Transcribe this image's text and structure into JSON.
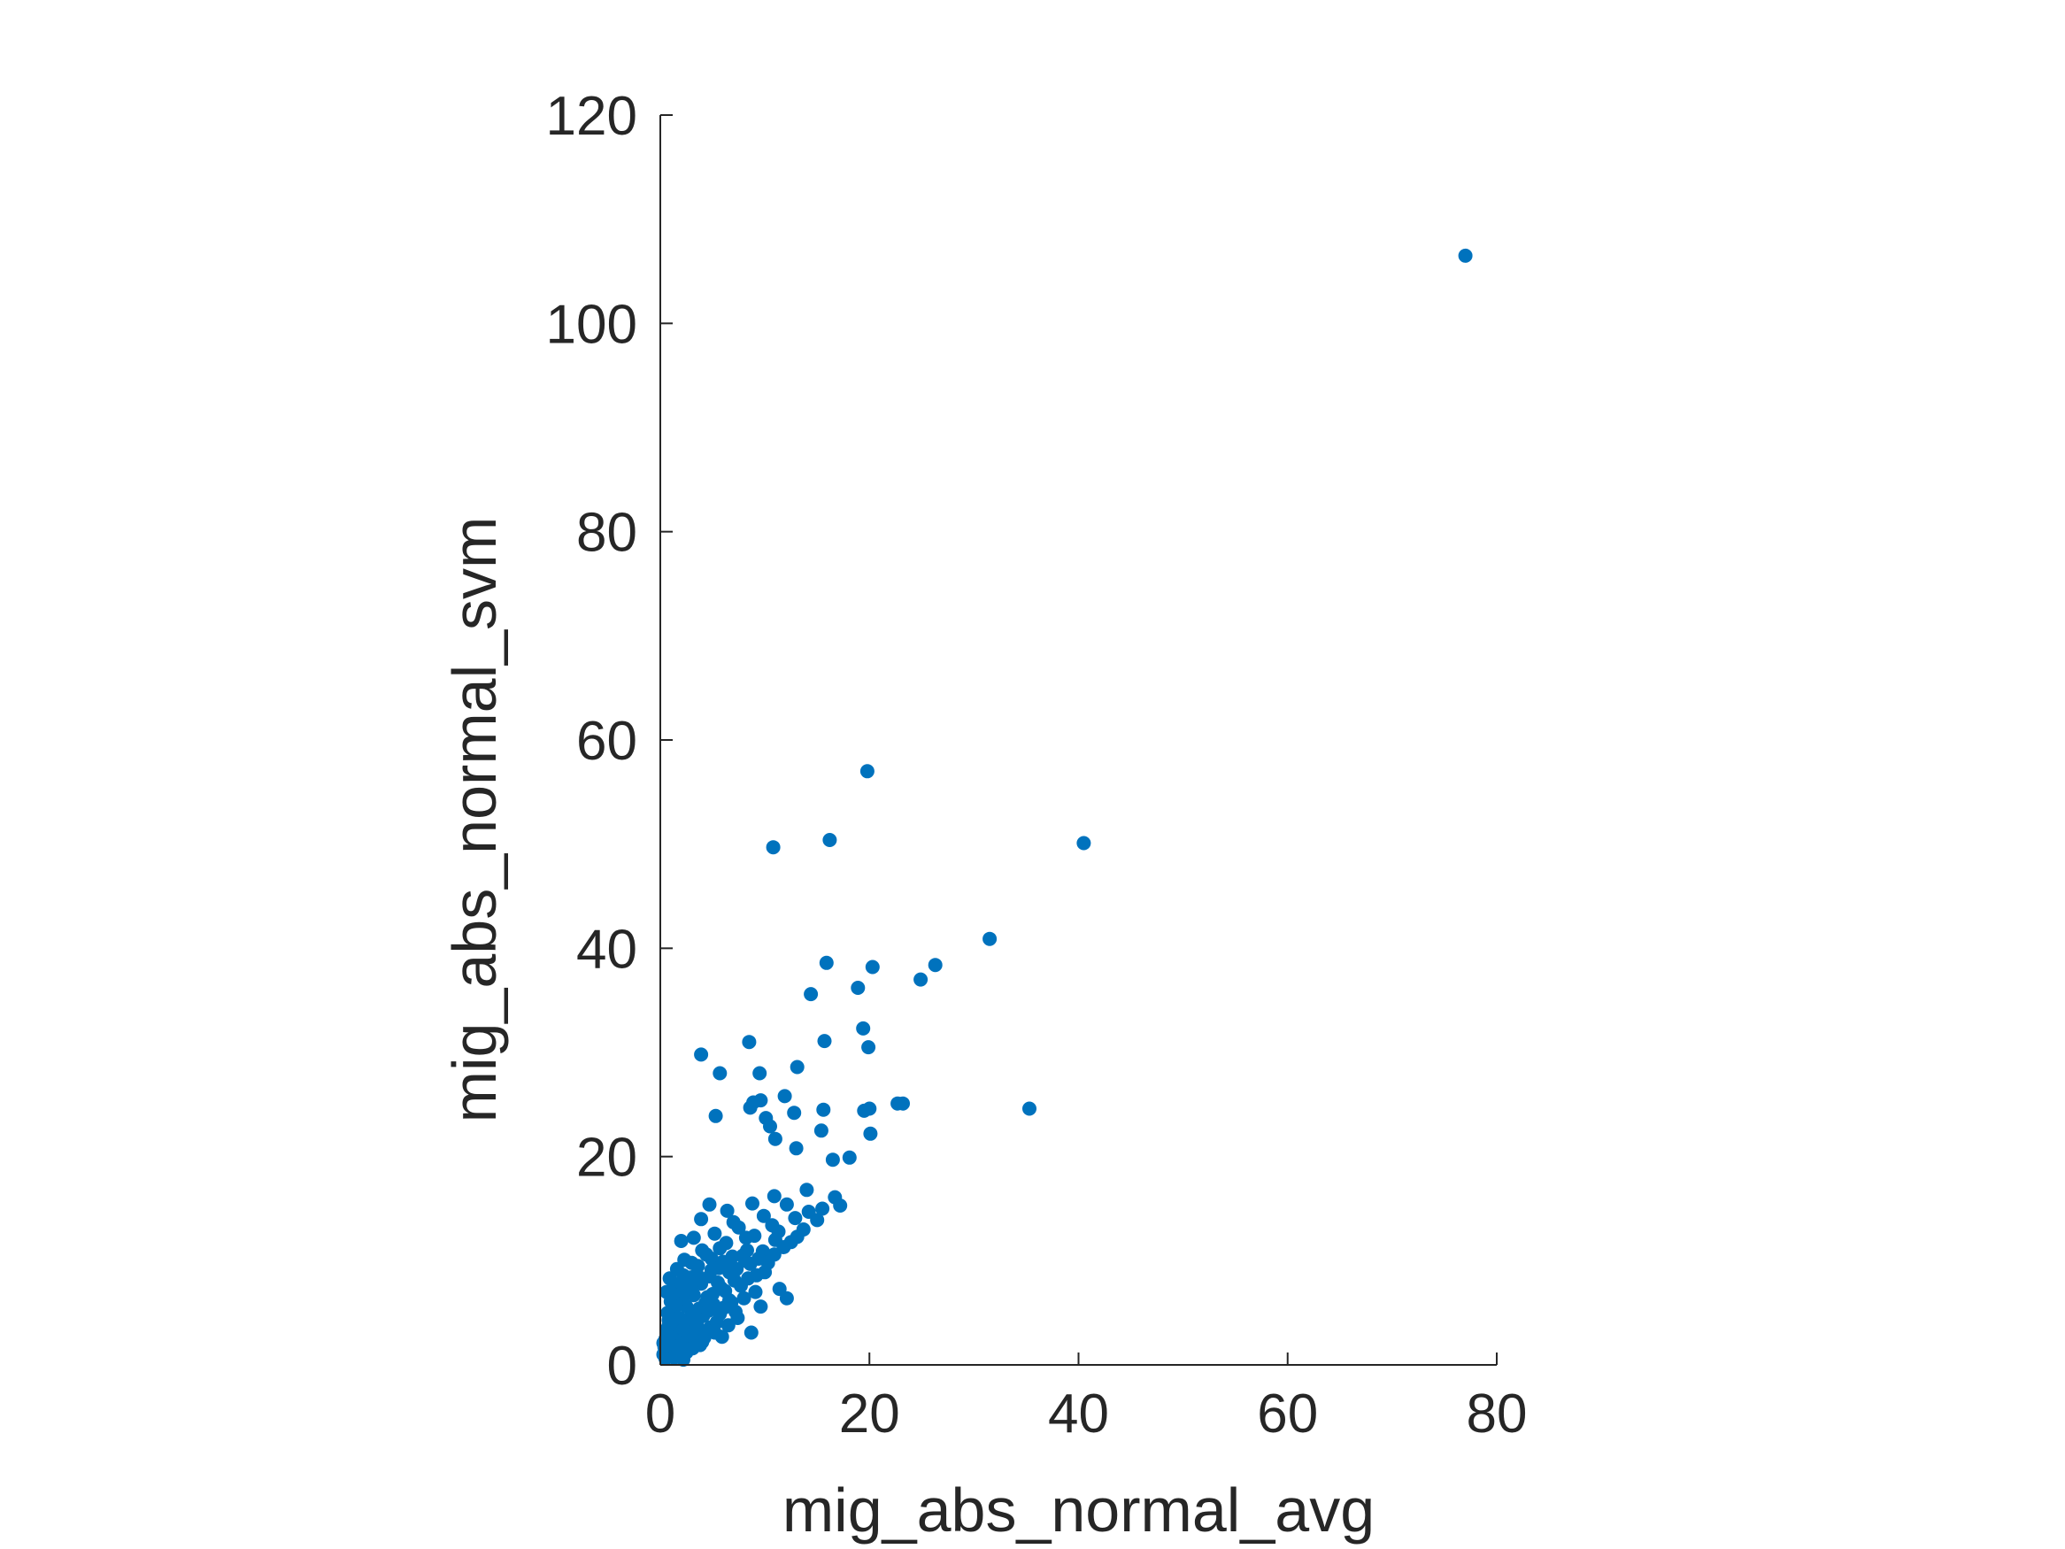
{
  "chart_data": {
    "type": "scatter",
    "title": "",
    "xlabel": "mig_abs_normal_avg",
    "ylabel": "mig_abs_normal_svm",
    "xlim": [
      0,
      80
    ],
    "ylim": [
      0,
      120
    ],
    "xticks": [
      "0",
      "20",
      "40",
      "60",
      "80"
    ],
    "yticks": [
      "0",
      "20",
      "40",
      "60",
      "80",
      "100",
      "120"
    ],
    "grid": false,
    "legend": "none",
    "marker_color": "#0072BD",
    "series": [
      {
        "points": [
          [
            77.0,
            106.5
          ],
          [
            40.5,
            50.1
          ],
          [
            31.5,
            40.9
          ],
          [
            35.3,
            24.6
          ],
          [
            26.3,
            38.4
          ],
          [
            24.9,
            37.0
          ],
          [
            23.2,
            25.1
          ],
          [
            22.7,
            25.1
          ],
          [
            19.8,
            57.0
          ],
          [
            16.2,
            50.4
          ],
          [
            10.8,
            49.7
          ],
          [
            15.9,
            38.6
          ],
          [
            20.3,
            38.2
          ],
          [
            14.4,
            35.6
          ],
          [
            18.9,
            36.2
          ],
          [
            19.4,
            32.3
          ],
          [
            19.9,
            30.5
          ],
          [
            15.7,
            31.1
          ],
          [
            8.5,
            31.0
          ],
          [
            3.9,
            29.8
          ],
          [
            5.7,
            28.0
          ],
          [
            13.1,
            28.6
          ],
          [
            9.5,
            28.0
          ],
          [
            11.9,
            25.8
          ],
          [
            8.9,
            25.2
          ],
          [
            9.6,
            25.4
          ],
          [
            15.6,
            24.5
          ],
          [
            19.5,
            24.4
          ],
          [
            20.0,
            24.6
          ],
          [
            12.8,
            24.2
          ],
          [
            5.3,
            23.9
          ],
          [
            10.1,
            23.7
          ],
          [
            8.6,
            24.7
          ],
          [
            10.5,
            22.9
          ],
          [
            15.4,
            22.5
          ],
          [
            20.1,
            22.2
          ],
          [
            11.0,
            21.7
          ],
          [
            13.0,
            20.8
          ],
          [
            16.5,
            19.7
          ],
          [
            18.1,
            19.9
          ],
          [
            10.9,
            16.2
          ],
          [
            14.0,
            16.8
          ],
          [
            16.7,
            16.1
          ],
          [
            4.7,
            15.4
          ],
          [
            6.4,
            14.8
          ],
          [
            8.8,
            15.5
          ],
          [
            3.9,
            14.0
          ],
          [
            7.0,
            13.7
          ],
          [
            9.9,
            14.3
          ],
          [
            12.1,
            15.4
          ],
          [
            15.5,
            15.0
          ],
          [
            2.0,
            11.9
          ],
          [
            3.2,
            12.2
          ],
          [
            5.7,
            11.2
          ],
          [
            8.2,
            12.2
          ],
          [
            11.3,
            12.8
          ],
          [
            13.1,
            12.3
          ],
          [
            3.0,
            9.8
          ],
          [
            4.4,
            10.6
          ],
          [
            6.0,
            9.9
          ],
          [
            7.9,
            10.5
          ],
          [
            9.8,
            10.9
          ],
          [
            11.8,
            11.3
          ],
          [
            2.2,
            8.6
          ],
          [
            3.5,
            8.7
          ],
          [
            4.9,
            9.1
          ],
          [
            6.6,
            8.9
          ],
          [
            8.6,
            9.7
          ],
          [
            10.3,
            9.8
          ],
          [
            1.4,
            7.5
          ],
          [
            2.6,
            7.6
          ],
          [
            3.9,
            7.8
          ],
          [
            5.5,
            7.9
          ],
          [
            7.1,
            8.1
          ],
          [
            9.2,
            8.6
          ],
          [
            11.4,
            7.3
          ],
          [
            1.0,
            6.1
          ],
          [
            2.1,
            6.5
          ],
          [
            3.2,
            6.7
          ],
          [
            4.5,
            6.5
          ],
          [
            6.2,
            7.1
          ],
          [
            8.0,
            6.4
          ],
          [
            12.1,
            6.4
          ],
          [
            1.3,
            5.3
          ],
          [
            2.5,
            5.6
          ],
          [
            3.7,
            5.4
          ],
          [
            5.1,
            5.8
          ],
          [
            6.8,
            6.0
          ],
          [
            9.6,
            5.6
          ],
          [
            0.8,
            4.3
          ],
          [
            1.8,
            4.5
          ],
          [
            2.9,
            4.6
          ],
          [
            4.1,
            4.7
          ],
          [
            5.7,
            4.9
          ],
          [
            7.4,
            4.5
          ],
          [
            0.6,
            3.4
          ],
          [
            1.5,
            3.6
          ],
          [
            2.4,
            3.8
          ],
          [
            3.5,
            3.9
          ],
          [
            4.8,
            3.6
          ],
          [
            6.5,
            3.8
          ],
          [
            8.7,
            3.1
          ],
          [
            0.5,
            2.5
          ],
          [
            1.2,
            2.7
          ],
          [
            2.0,
            2.9
          ],
          [
            3.0,
            3.0
          ],
          [
            4.2,
            2.6
          ],
          [
            5.9,
            2.7
          ],
          [
            0.4,
            1.7
          ],
          [
            1.0,
            1.9
          ],
          [
            1.8,
            2.0
          ],
          [
            2.7,
            2.1
          ],
          [
            3.8,
            1.9
          ],
          [
            0.3,
            1.0
          ],
          [
            0.9,
            1.2
          ],
          [
            1.6,
            1.3
          ],
          [
            2.5,
            1.2
          ],
          [
            0.5,
            0.6
          ],
          [
            1.3,
            0.7
          ],
          [
            2.2,
            0.5
          ],
          [
            0.9,
            8.3
          ],
          [
            1.6,
            9.2
          ],
          [
            2.3,
            10.1
          ],
          [
            4.0,
            11.0
          ],
          [
            5.2,
            12.6
          ],
          [
            6.3,
            11.7
          ],
          [
            7.5,
            13.2
          ],
          [
            9.0,
            12.4
          ],
          [
            10.7,
            13.4
          ],
          [
            12.9,
            14.1
          ],
          [
            14.2,
            14.7
          ],
          [
            17.2,
            15.3
          ],
          [
            6.9,
            10.4
          ],
          [
            8.3,
            11.0
          ],
          [
            9.4,
            10.2
          ],
          [
            10.9,
            10.6
          ],
          [
            12.5,
            11.8
          ],
          [
            3.4,
            5.1
          ],
          [
            4.3,
            5.9
          ],
          [
            5.0,
            6.8
          ],
          [
            5.8,
            7.4
          ],
          [
            6.6,
            6.2
          ],
          [
            7.7,
            7.6
          ],
          [
            8.4,
            8.3
          ],
          [
            9.1,
            7.0
          ],
          [
            10.0,
            8.9
          ],
          [
            2.8,
            4.1
          ],
          [
            3.6,
            4.4
          ],
          [
            4.6,
            5.2
          ],
          [
            5.4,
            4.1
          ],
          [
            6.1,
            5.5
          ],
          [
            7.2,
            5.1
          ],
          [
            1.1,
            3.0
          ],
          [
            1.9,
            3.3
          ],
          [
            2.6,
            2.4
          ],
          [
            3.3,
            2.3
          ],
          [
            4.4,
            3.3
          ],
          [
            5.2,
            3.1
          ],
          [
            0.7,
            5.0
          ],
          [
            1.5,
            5.9
          ],
          [
            2.3,
            6.9
          ],
          [
            3.0,
            7.3
          ],
          [
            3.8,
            8.2
          ],
          [
            4.7,
            8.5
          ],
          [
            0.6,
            7.0
          ],
          [
            1.2,
            6.8
          ],
          [
            2.0,
            7.9
          ],
          [
            2.9,
            8.4
          ],
          [
            3.6,
            9.5
          ],
          [
            4.9,
            10.2
          ],
          [
            5.6,
            9.3
          ],
          [
            6.4,
            9.6
          ],
          [
            7.3,
            9.2
          ],
          [
            8.1,
            10.0
          ],
          [
            11.0,
            12.0
          ],
          [
            13.7,
            13.0
          ],
          [
            15.0,
            13.9
          ],
          [
            1.7,
            1.6
          ],
          [
            2.4,
            1.5
          ],
          [
            3.1,
            1.6
          ],
          [
            4.0,
            2.2
          ],
          [
            0.3,
            2.1
          ],
          [
            0.8,
            3.8
          ],
          [
            1.4,
            4.2
          ],
          [
            2.2,
            3.4
          ],
          [
            3.4,
            3.5
          ]
        ]
      }
    ]
  }
}
